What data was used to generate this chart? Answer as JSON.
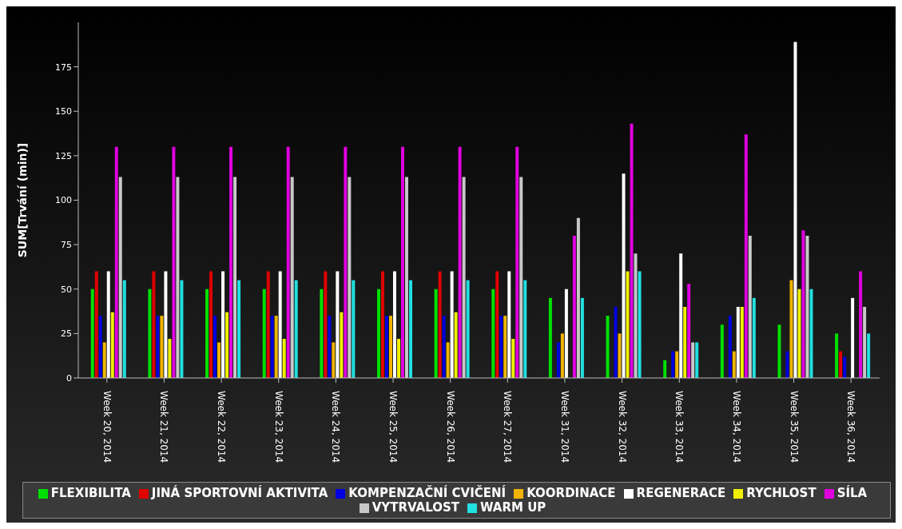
{
  "chart_data": {
    "type": "bar",
    "ylabel": "SUM[Trvání (min)]",
    "categories": [
      "Week 20, 2014",
      "Week 21, 2014",
      "Week 22, 2014",
      "Week 23, 2014",
      "Week 24, 2014",
      "Week 25, 2014",
      "Week 26, 2014",
      "Week 27, 2014",
      "Week 31, 2014",
      "Week 32, 2014",
      "Week 33, 2014",
      "Week 34, 2014",
      "Week 35, 2014",
      "Week 36, 2014"
    ],
    "series": [
      {
        "name": "FLEXIBILITA",
        "color": "#00e000",
        "values": [
          50,
          50,
          50,
          50,
          50,
          50,
          50,
          50,
          45,
          35,
          10,
          30,
          30,
          25
        ]
      },
      {
        "name": "JINÁ SPORTOVNÍ AKTIVITA",
        "color": "#e00000",
        "values": [
          60,
          60,
          60,
          60,
          60,
          60,
          60,
          60,
          null,
          null,
          null,
          null,
          null,
          15
        ]
      },
      {
        "name": "KOMPENZAČNÍ CVIČENÍ",
        "color": "#0000e0",
        "values": [
          35,
          35,
          35,
          35,
          35,
          35,
          35,
          35,
          20,
          40,
          15,
          35,
          15,
          12
        ]
      },
      {
        "name": "KOORDINACE",
        "color": "#f0b400",
        "values": [
          20,
          35,
          20,
          35,
          20,
          35,
          20,
          35,
          25,
          25,
          15,
          15,
          55,
          null
        ]
      },
      {
        "name": "REGENERACE",
        "color": "#ffffff",
        "values": [
          60,
          60,
          60,
          60,
          60,
          60,
          60,
          60,
          50,
          115,
          70,
          40,
          189,
          45
        ]
      },
      {
        "name": "RYCHLOST",
        "color": "#f0f000",
        "values": [
          37,
          22,
          37,
          22,
          37,
          22,
          37,
          22,
          null,
          60,
          40,
          40,
          50,
          null
        ]
      },
      {
        "name": "SÍLA",
        "color": "#e000e0",
        "values": [
          130,
          130,
          130,
          130,
          130,
          130,
          130,
          130,
          80,
          143,
          53,
          137,
          83,
          60
        ]
      },
      {
        "name": "VYTRVALOST",
        "color": "#c8c8c8",
        "values": [
          113,
          113,
          113,
          113,
          113,
          113,
          113,
          113,
          90,
          70,
          20,
          80,
          80,
          40
        ]
      },
      {
        "name": "WARM UP",
        "color": "#20e0e0",
        "values": [
          55,
          55,
          55,
          55,
          55,
          55,
          55,
          55,
          45,
          60,
          20,
          45,
          50,
          25
        ]
      }
    ],
    "ylim": [
      0,
      200
    ],
    "yticks": [
      0,
      25,
      50,
      75,
      100,
      125,
      150,
      175
    ],
    "grid": false,
    "legend": "bottom"
  }
}
